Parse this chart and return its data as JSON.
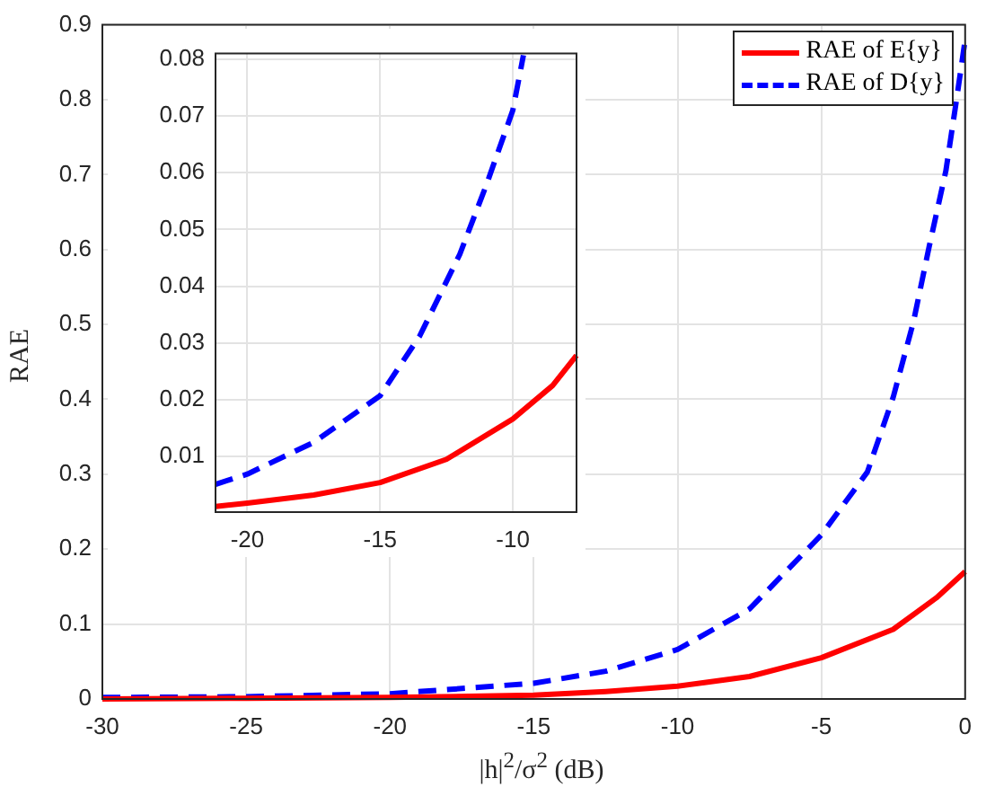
{
  "chart_data": [
    {
      "type": "line",
      "xlabel": "|h|$^{2}$/σ$^{2}$ (dB)",
      "ylabel": "RAE",
      "xlim": [
        -30,
        0
      ],
      "ylim": [
        0,
        0.9
      ],
      "xticks": [
        -30,
        -25,
        -20,
        -15,
        -10,
        -5,
        0
      ],
      "yticks": [
        0,
        0.1,
        0.2,
        0.3,
        0.4,
        0.5,
        0.6,
        0.7,
        0.8,
        0.9
      ],
      "grid": true,
      "legend": "top right",
      "marker": "none",
      "series": [
        {
          "name": "RAE of E{y}",
          "color": "#ff0000",
          "line_style": "solid",
          "x": [
            -30,
            -25,
            -20,
            -15,
            -12.5,
            -10,
            -7.5,
            -5,
            -2.5,
            -1,
            0
          ],
          "values": [
            0,
            0.001,
            0.002,
            0.005,
            0.01,
            0.017,
            0.03,
            0.055,
            0.093,
            0.135,
            0.17
          ]
        },
        {
          "name": "RAE of D{y}",
          "color": "#0000ff",
          "line_style": "dashed",
          "x": [
            -30,
            -25,
            -20,
            -15,
            -12.5,
            -10,
            -7.5,
            -5,
            -3.4,
            -2.5,
            -1.8,
            -1.25,
            -0.67,
            -0.3,
            0
          ],
          "values": [
            0.002,
            0.003,
            0.007,
            0.021,
            0.037,
            0.066,
            0.12,
            0.219,
            0.303,
            0.403,
            0.503,
            0.604,
            0.705,
            0.8,
            0.88
          ]
        }
      ]
    },
    {
      "type": "line",
      "xlim": [
        -21.2,
        -7.6
      ],
      "ylim": [
        0.0002,
        0.081
      ],
      "xticks": [
        -20,
        -15,
        -10
      ],
      "yticks": [
        0.01,
        0.02,
        0.03,
        0.04,
        0.05,
        0.06,
        0.07,
        0.08
      ],
      "grid": true,
      "legend": false,
      "marker": "none",
      "series": [
        {
          "color": "#ff0000",
          "line_style": "solid",
          "x": [
            -21.2,
            -20,
            -17.5,
            -15,
            -12.5,
            -10,
            -8.5,
            -7.6
          ],
          "values": [
            0.0012,
            0.0018,
            0.0032,
            0.0054,
            0.0095,
            0.0166,
            0.0225,
            0.0278
          ]
        },
        {
          "color": "#0000ff",
          "line_style": "dashed",
          "x": [
            -21.2,
            -20,
            -17.5,
            -15,
            -13.5,
            -12,
            -11,
            -10,
            -9.6
          ],
          "values": [
            0.0051,
            0.0069,
            0.0125,
            0.0207,
            0.0313,
            0.0456,
            0.0578,
            0.071,
            0.0807
          ]
        }
      ]
    }
  ]
}
